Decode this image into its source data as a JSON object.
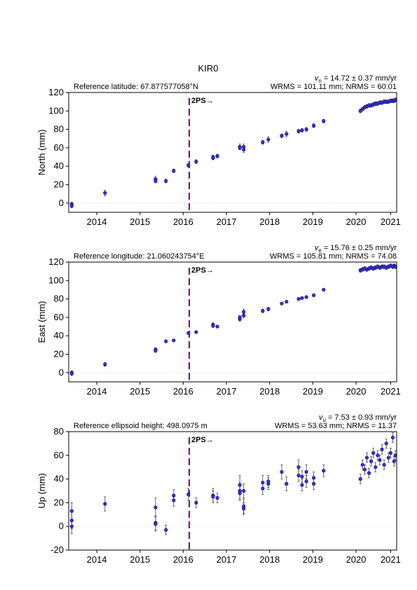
{
  "chart_data": [
    {
      "type": "scatter",
      "title": "KIR0",
      "ylabel": "North (mm)",
      "reference": "Reference latitude: 67.877577058°N",
      "rate_symbol": "v",
      "rate_subscript": "n",
      "rate_text": " = 14.72 ± 0.37 mm/yr",
      "stats": "WRMS = 101.11 mm; NRMS = 60.01",
      "annotation": {
        "text": "2PS→",
        "x": 2016.14,
        "color": "#800080"
      },
      "color": "#3333cc",
      "edge_color": "#000080",
      "error_color": "#444444",
      "zero_line": true,
      "xlim": [
        2013.35,
        2020.94
      ],
      "xticks": [
        2014,
        2015,
        2016,
        2017,
        2018,
        2019,
        2020,
        {
          "value": 2020.8,
          "label": "2021"
        }
      ],
      "ylim": [
        -10,
        120
      ],
      "yticks": [
        0,
        20,
        40,
        60,
        80,
        100,
        120
      ],
      "x": [
        2013.42,
        2013.42,
        2014.19,
        2015.36,
        2015.36,
        2015.6,
        2015.78,
        2016.12,
        2016.3,
        2016.69,
        2016.69,
        2016.79,
        2017.31,
        2017.31,
        2017.4,
        2017.4,
        2017.84,
        2017.97,
        2018.28,
        2018.39,
        2018.67,
        2018.75,
        2018.85,
        2019.02,
        2019.25,
        2020.1,
        2020.15,
        2020.2,
        2020.25,
        2020.3,
        2020.35,
        2020.4,
        2020.45,
        2020.5,
        2020.55,
        2020.6,
        2020.65,
        2020.7,
        2020.75,
        2020.8,
        2020.85,
        2020.88,
        2020.91
      ],
      "values": [
        -1,
        -3,
        11,
        26,
        24,
        24,
        35,
        41,
        45,
        49,
        50,
        51,
        61,
        60,
        58,
        61,
        66,
        69,
        73,
        75,
        78,
        79,
        80,
        84,
        89,
        100,
        102,
        104,
        105,
        106,
        106,
        107,
        108,
        108,
        109,
        109,
        110,
        110,
        110,
        111,
        111,
        111,
        112
      ],
      "errors": [
        2,
        2,
        3,
        3,
        2,
        2,
        2,
        2,
        2,
        2,
        2,
        2,
        3,
        2,
        3,
        3,
        2,
        3,
        2,
        3,
        2,
        2,
        2,
        2,
        2,
        2,
        2,
        2,
        2,
        2,
        2,
        2,
        2,
        2,
        2,
        2,
        2,
        2,
        2,
        2,
        2,
        2,
        2
      ]
    },
    {
      "type": "scatter",
      "ylabel": "East (mm)",
      "reference": "Reference longitude: 21.060243754°E",
      "rate_symbol": "v",
      "rate_subscript": "e",
      "rate_text": " = 15.76 ± 0.25 mm/yr",
      "stats": "WRMS = 105.81 mm; NRMS = 74.08",
      "annotation": {
        "text": "2PS→",
        "x": 2016.14,
        "color": "#800080"
      },
      "color": "#3333cc",
      "edge_color": "#000080",
      "error_color": "#444444",
      "zero_line": true,
      "xlim": [
        2013.35,
        2020.94
      ],
      "xticks": [
        2014,
        2015,
        2016,
        2017,
        2018,
        2019,
        2020,
        {
          "value": 2020.8,
          "label": "2021"
        }
      ],
      "ylim": [
        -10,
        120
      ],
      "yticks": [
        0,
        20,
        40,
        60,
        80,
        100,
        120
      ],
      "x": [
        2013.42,
        2013.42,
        2014.19,
        2015.36,
        2015.36,
        2015.6,
        2015.78,
        2016.12,
        2016.3,
        2016.69,
        2016.69,
        2016.79,
        2017.31,
        2017.31,
        2017.4,
        2017.4,
        2017.84,
        2017.97,
        2018.28,
        2018.39,
        2018.67,
        2018.75,
        2018.85,
        2019.02,
        2019.25,
        2020.1,
        2020.15,
        2020.2,
        2020.25,
        2020.3,
        2020.35,
        2020.4,
        2020.45,
        2020.5,
        2020.55,
        2020.6,
        2020.65,
        2020.7,
        2020.75,
        2020.8,
        2020.85,
        2020.88,
        2020.91
      ],
      "values": [
        0,
        -1,
        9,
        25,
        24,
        34,
        35,
        43,
        44,
        52,
        51,
        50,
        58,
        60,
        62,
        66,
        67,
        69,
        75,
        77,
        80,
        81,
        82,
        84,
        90,
        111,
        112,
        113,
        112,
        113,
        114,
        113,
        114,
        115,
        114,
        115,
        115,
        114,
        115,
        116,
        115,
        116,
        115
      ],
      "errors": [
        2,
        2,
        2,
        2,
        2,
        1,
        1,
        1,
        1,
        2,
        2,
        1,
        2,
        2,
        2,
        3,
        2,
        2,
        1,
        1,
        1,
        1,
        1,
        1,
        1,
        2,
        2,
        2,
        2,
        2,
        2,
        2,
        2,
        2,
        2,
        2,
        2,
        2,
        2,
        2,
        2,
        2,
        2
      ]
    },
    {
      "type": "scatter",
      "ylabel": "Up (mm)",
      "reference": "Reference ellipsoid height: 498.0975 m",
      "rate_symbol": "v",
      "rate_subscript": "u",
      "rate_text": " = 7.53 ± 0.93 mm/yr",
      "stats": "WRMS = 53.63 mm; NRMS = 11.37",
      "annotation": {
        "text": "2PS→",
        "x": 2016.14,
        "color": "#800080"
      },
      "color": "#3333cc",
      "edge_color": "#000080",
      "error_color": "#444444",
      "zero_line": true,
      "xlim": [
        2013.35,
        2020.94
      ],
      "xticks": [
        2014,
        2015,
        2016,
        2017,
        2018,
        2019,
        2020,
        {
          "value": 2020.8,
          "label": "2021"
        }
      ],
      "ylim": [
        -20,
        80
      ],
      "yticks": [
        -20,
        0,
        20,
        40,
        60,
        80
      ],
      "x": [
        2013.42,
        2013.42,
        2013.42,
        2014.19,
        2015.36,
        2015.36,
        2015.36,
        2015.6,
        2015.78,
        2015.78,
        2016.12,
        2016.3,
        2016.69,
        2016.69,
        2016.79,
        2017.31,
        2017.31,
        2017.31,
        2017.4,
        2017.4,
        2017.4,
        2017.84,
        2017.84,
        2017.97,
        2017.97,
        2018.28,
        2018.39,
        2018.67,
        2018.67,
        2018.75,
        2018.75,
        2018.85,
        2018.85,
        2019.02,
        2019.02,
        2019.25,
        2020.1,
        2020.15,
        2020.2,
        2020.25,
        2020.3,
        2020.35,
        2020.4,
        2020.45,
        2020.5,
        2020.55,
        2020.6,
        2020.65,
        2020.7,
        2020.75,
        2020.8,
        2020.85,
        2020.88,
        2020.91
      ],
      "values": [
        13,
        5,
        0,
        19,
        16,
        3,
        2,
        -3,
        26,
        22,
        27,
        20,
        26,
        25,
        24,
        35,
        30,
        28,
        17,
        15,
        30,
        37,
        32,
        38,
        36,
        46,
        36,
        50,
        43,
        42,
        35,
        46,
        38,
        41,
        36,
        47,
        40,
        52,
        48,
        58,
        45,
        55,
        62,
        50,
        60,
        56,
        65,
        52,
        70,
        58,
        62,
        75,
        55,
        60
      ],
      "errors": [
        7,
        7,
        6,
        6,
        8,
        6,
        6,
        4,
        5,
        5,
        5,
        4,
        6,
        5,
        4,
        8,
        7,
        6,
        6,
        5,
        6,
        6,
        5,
        5,
        5,
        6,
        6,
        6,
        5,
        5,
        5,
        6,
        5,
        5,
        5,
        5,
        4,
        4,
        4,
        4,
        4,
        4,
        4,
        4,
        4,
        4,
        4,
        4,
        4,
        4,
        4,
        4,
        4,
        4
      ]
    }
  ]
}
